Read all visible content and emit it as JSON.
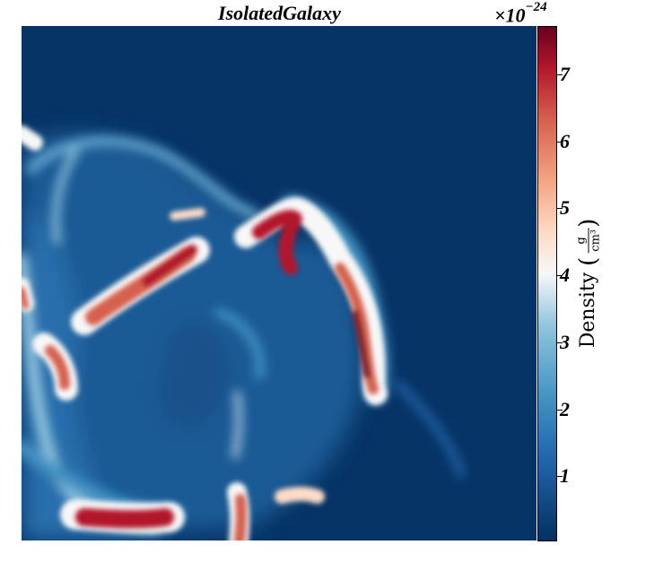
{
  "figure": {
    "title": "IsolatedGalaxy",
    "colorbar": {
      "multiplier_base": "×10",
      "multiplier_exponent": "−24",
      "label": "Density",
      "unit_numerator": "g",
      "unit_denominator": "cm³",
      "colormap": "RdBu_r",
      "ticks": [
        "1",
        "2",
        "3",
        "4",
        "5",
        "6",
        "7"
      ]
    },
    "colors": {
      "background_low": "#073466",
      "mid_blue": "#4393c3",
      "white": "#f7f7f7",
      "high_red": "#b2182b",
      "dark_red": "#67001f"
    }
  }
}
